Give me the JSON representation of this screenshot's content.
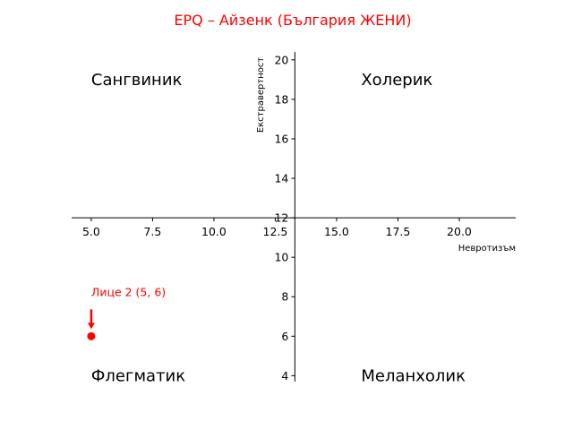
{
  "chart_data": {
    "type": "scatter",
    "title": "EPQ – Айзенк (България ЖЕНИ)",
    "xlabel": "Невротизъм",
    "ylabel": "Екстравертност",
    "xlim": [
      4.2,
      22.3
    ],
    "ylim": [
      3.7,
      20.4
    ],
    "axis_cross": {
      "x": 13.3,
      "y": 12
    },
    "grid": false,
    "x_ticks": [
      "5.0",
      "7.5",
      "10.0",
      "12.5",
      "15.0",
      "17.5",
      "20.0"
    ],
    "x_tick_values": [
      5,
      7.5,
      10,
      12.5,
      15,
      17.5,
      20
    ],
    "y_ticks": [
      "4",
      "6",
      "8",
      "10",
      "12",
      "14",
      "16",
      "18",
      "20"
    ],
    "y_tick_values": [
      4,
      6,
      8,
      10,
      12,
      14,
      16,
      18,
      20
    ],
    "quadrants": [
      {
        "label": "Сангвиник",
        "x": 5,
        "y": 19
      },
      {
        "label": "Холерик",
        "x": 16,
        "y": 19
      },
      {
        "label": "Флегматик",
        "x": 5,
        "y": 4
      },
      {
        "label": "Меланхолик",
        "x": 16,
        "y": 4
      }
    ],
    "points": [
      {
        "x": 5,
        "y": 6,
        "label": "Лице 2 (5, 6)"
      }
    ],
    "colors": {
      "title": "#ff0000",
      "point": "#ff0000",
      "annotation": "#ff0000",
      "axes": "#000000"
    }
  }
}
